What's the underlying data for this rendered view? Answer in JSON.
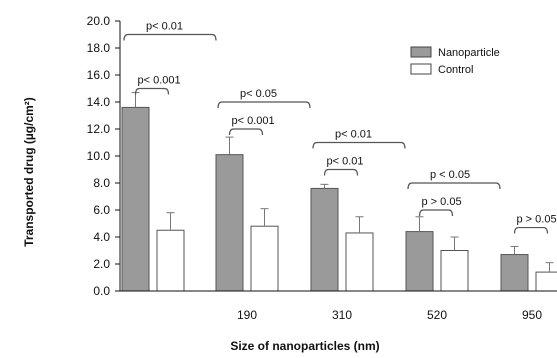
{
  "chart_data": {
    "type": "bar",
    "xlabel": "Size of nanoparticles (nm)",
    "ylabel": "Transported drug (µg/cm²)",
    "ylim": [
      0,
      20
    ],
    "yticks": [
      "0.0",
      "2.0",
      "4.0",
      "6.0",
      "8.0",
      "10.0",
      "12.0",
      "14.0",
      "16.0",
      "18.0",
      "20.0"
    ],
    "categories": [
      "",
      "190",
      "310",
      "520",
      "950"
    ],
    "series": [
      {
        "name": "Nanoparticle",
        "color": "#9a9a9a",
        "values": [
          13.6,
          10.1,
          7.6,
          4.4,
          2.7
        ],
        "errors": [
          1.1,
          1.3,
          0.3,
          1.1,
          0.6
        ]
      },
      {
        "name": "Control",
        "color": "#ffffff",
        "values": [
          4.5,
          4.8,
          4.3,
          3.0,
          1.4
        ],
        "errors": [
          1.3,
          1.3,
          1.2,
          1.0,
          0.7
        ]
      }
    ],
    "legend": "top-right",
    "annotations": [
      {
        "text": "p< 0.01",
        "category": 0,
        "level": 19.0,
        "span": "group"
      },
      {
        "text": "p< 0.001",
        "category": 0,
        "level": 15.0,
        "span": "pair"
      },
      {
        "text": "p< 0.05",
        "category": 1,
        "level": 14.0,
        "span": "group"
      },
      {
        "text": "p< 0.001",
        "category": 1,
        "level": 12.0,
        "span": "pair"
      },
      {
        "text": "p< 0.01",
        "category": 2,
        "level": 11.0,
        "span": "group"
      },
      {
        "text": "p< 0.01",
        "category": 2,
        "level": 9.0,
        "span": "pair"
      },
      {
        "text": "p < 0.05",
        "category": 3,
        "level": 8.0,
        "span": "group"
      },
      {
        "text": "p > 0.05",
        "category": 3,
        "level": 6.0,
        "span": "pair"
      },
      {
        "text": "p > 0.05",
        "category": 4,
        "level": 4.7,
        "span": "pair"
      }
    ]
  }
}
